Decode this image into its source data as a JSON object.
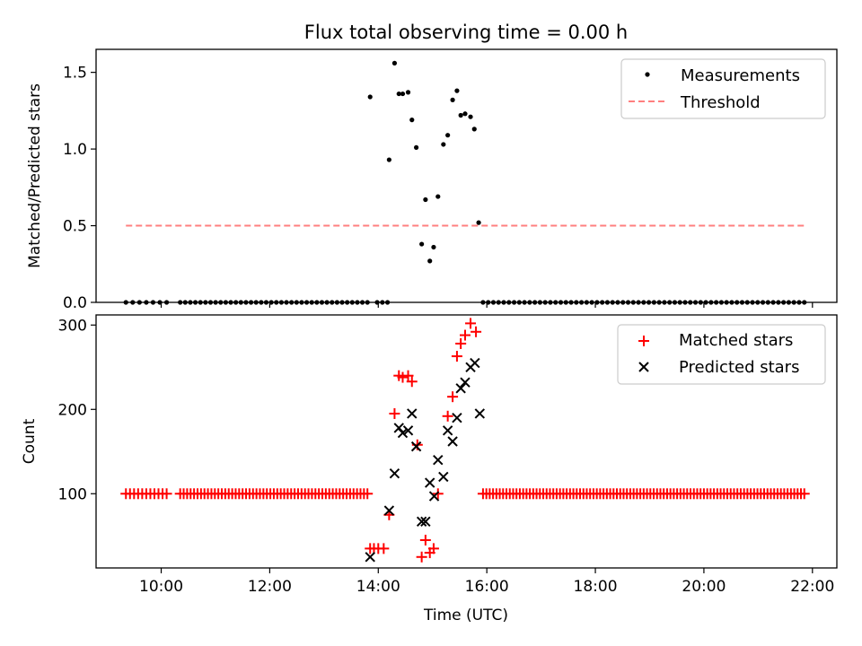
{
  "chart_data": [
    {
      "type": "scatter",
      "title": "Flux total observing time = 0.00 h",
      "xlabel": "",
      "ylabel": "Matched/Predicted stars",
      "xlim": [
        8.8,
        22.45
      ],
      "ylim": [
        0,
        1.65
      ],
      "xticks": [
        10,
        12,
        14,
        16,
        18,
        20,
        22
      ],
      "yticks": [
        0,
        0.5,
        1.0,
        1.5
      ],
      "ytick_labels": [
        "0.0",
        "0.5",
        "1.0",
        "1.5"
      ],
      "legend_position": "top-right",
      "series": [
        {
          "name": "Measurements",
          "color": "#000000",
          "marker": "dot",
          "points": [
            [
              13.85,
              1.34
            ],
            [
              14.2,
              0.93
            ],
            [
              14.3,
              1.56
            ],
            [
              14.38,
              1.36
            ],
            [
              14.45,
              1.36
            ],
            [
              14.55,
              1.37
            ],
            [
              14.62,
              1.19
            ],
            [
              14.7,
              1.01
            ],
            [
              14.8,
              0.38
            ],
            [
              14.87,
              0.67
            ],
            [
              14.95,
              0.27
            ],
            [
              15.02,
              0.36
            ],
            [
              15.1,
              0.69
            ],
            [
              15.2,
              1.03
            ],
            [
              15.28,
              1.09
            ],
            [
              15.37,
              1.32
            ],
            [
              15.45,
              1.38
            ],
            [
              15.52,
              1.22
            ],
            [
              15.6,
              1.23
            ],
            [
              15.7,
              1.21
            ],
            [
              15.77,
              1.13
            ],
            [
              15.85,
              0.52
            ]
          ],
          "zero_runs": [
            [
              9.35,
              10.1,
              7
            ],
            [
              10.35,
              13.8,
              38
            ],
            [
              13.98,
              14.17,
              3
            ],
            [
              15.93,
              21.85,
              63
            ]
          ]
        },
        {
          "name": "Threshold",
          "color": "#ff7f7f",
          "style": "dashed",
          "x": [
            9.35,
            21.85
          ],
          "y": [
            0.5,
            0.5
          ]
        }
      ]
    },
    {
      "type": "scatter",
      "title": "",
      "xlabel": "Time (UTC)",
      "ylabel": "Count",
      "xlim": [
        8.8,
        22.45
      ],
      "ylim": [
        12,
        312
      ],
      "xticks": [
        10,
        12,
        14,
        16,
        18,
        20,
        22
      ],
      "xtick_labels": [
        "10:00",
        "12:00",
        "14:00",
        "16:00",
        "18:00",
        "20:00",
        "22:00"
      ],
      "yticks": [
        100,
        200,
        300
      ],
      "ytick_labels": [
        "100",
        "200",
        "300"
      ],
      "legend_position": "top-right",
      "series": [
        {
          "name": "Matched stars",
          "color": "#ff0000",
          "marker": "plus",
          "points": [
            [
              13.85,
              35
            ],
            [
              13.92,
              35
            ],
            [
              14.0,
              35
            ],
            [
              14.1,
              35
            ],
            [
              14.2,
              75
            ],
            [
              14.3,
              195
            ],
            [
              14.38,
              240
            ],
            [
              14.45,
              238
            ],
            [
              14.55,
              240
            ],
            [
              14.62,
              233
            ],
            [
              14.72,
              158
            ],
            [
              14.8,
              25
            ],
            [
              14.87,
              45
            ],
            [
              14.95,
              30
            ],
            [
              15.02,
              35
            ],
            [
              15.1,
              100
            ],
            [
              15.28,
              192
            ],
            [
              15.37,
              215
            ],
            [
              15.45,
              263
            ],
            [
              15.52,
              278
            ],
            [
              15.6,
              288
            ],
            [
              15.7,
              302
            ],
            [
              15.8,
              292
            ]
          ],
          "constant_runs": [
            [
              9.35,
              10.1,
              100,
              11
            ],
            [
              10.35,
              13.8,
              100,
              55
            ],
            [
              15.93,
              21.85,
              100,
              97
            ]
          ]
        },
        {
          "name": "Predicted stars",
          "color": "#000000",
          "marker": "x",
          "points": [
            [
              13.85,
              25
            ],
            [
              14.2,
              80
            ],
            [
              14.3,
              124
            ],
            [
              14.38,
              178
            ],
            [
              14.45,
              172
            ],
            [
              14.55,
              175
            ],
            [
              14.62,
              195
            ],
            [
              14.7,
              156
            ],
            [
              14.8,
              67
            ],
            [
              14.87,
              67
            ],
            [
              14.95,
              113
            ],
            [
              15.03,
              97
            ],
            [
              15.1,
              140
            ],
            [
              15.2,
              120
            ],
            [
              15.28,
              175
            ],
            [
              15.37,
              162
            ],
            [
              15.45,
              190
            ],
            [
              15.52,
              225
            ],
            [
              15.6,
              232
            ],
            [
              15.7,
              250
            ],
            [
              15.78,
              255
            ],
            [
              15.87,
              195
            ]
          ]
        }
      ]
    }
  ]
}
